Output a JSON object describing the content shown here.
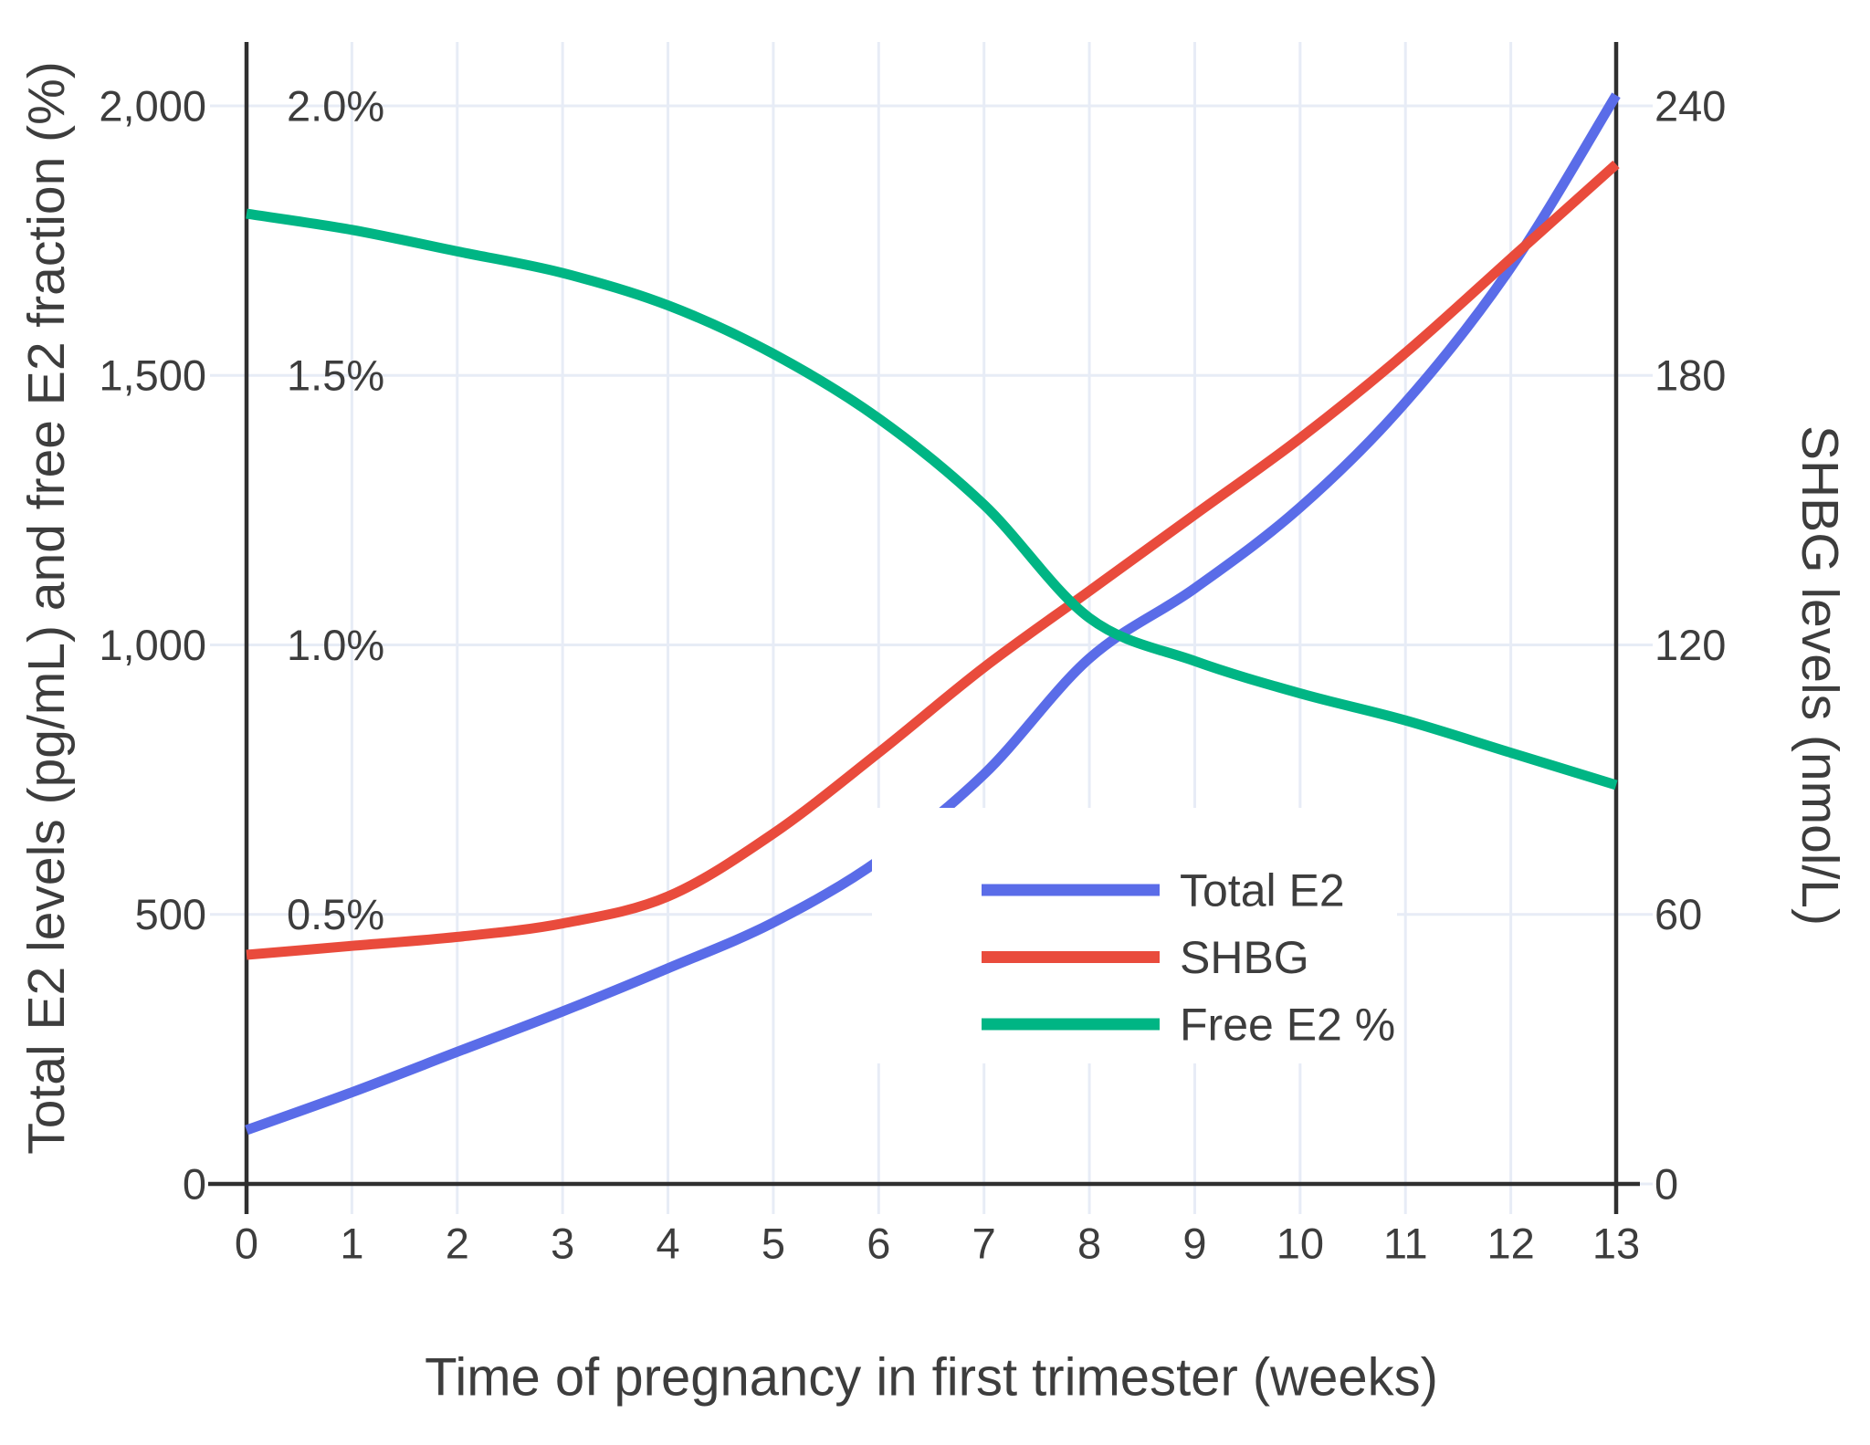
{
  "chart_data": {
    "type": "line",
    "x_label": "Time of pregnancy in first trimester (weeks)",
    "weeks": [
      0,
      1,
      2,
      3,
      4,
      5,
      6,
      7,
      8,
      9,
      10,
      11,
      12,
      13
    ],
    "x_ticks": [
      {
        "v": 0,
        "label": "0"
      },
      {
        "v": 1,
        "label": "1"
      },
      {
        "v": 2,
        "label": "2"
      },
      {
        "v": 3,
        "label": "3"
      },
      {
        "v": 4,
        "label": "4"
      },
      {
        "v": 5,
        "label": "5"
      },
      {
        "v": 6,
        "label": "6"
      },
      {
        "v": 7,
        "label": "7"
      },
      {
        "v": 8,
        "label": "8"
      },
      {
        "v": 9,
        "label": "9"
      },
      {
        "v": 10,
        "label": "10"
      },
      {
        "v": 11,
        "label": "11"
      },
      {
        "v": 12,
        "label": "12"
      },
      {
        "v": 13,
        "label": "13"
      }
    ],
    "y_left": {
      "label": "Total E2 levels (pg/mL) and free E2 fraction (%)",
      "range": [
        0,
        2135
      ],
      "ticks": [
        {
          "v": 0,
          "label": "0"
        },
        {
          "v": 500,
          "label": "500"
        },
        {
          "v": 1000,
          "label": "1,000"
        },
        {
          "v": 1500,
          "label": "1,500"
        },
        {
          "v": 2000,
          "label": "2,000"
        }
      ],
      "pct_ticks": [
        {
          "v": 500,
          "label": "0.5%"
        },
        {
          "v": 1000,
          "label": "1.0%"
        },
        {
          "v": 1500,
          "label": "1.5%"
        },
        {
          "v": 2000,
          "label": "2.0%"
        }
      ]
    },
    "y_right": {
      "label": "SHBG levels (nmol/L)",
      "range": [
        0,
        256
      ],
      "ticks": [
        {
          "v": 0,
          "label": "0"
        },
        {
          "v": 60,
          "label": "60"
        },
        {
          "v": 120,
          "label": "120"
        },
        {
          "v": 180,
          "label": "180"
        },
        {
          "v": 240,
          "label": "240"
        }
      ]
    },
    "series": [
      {
        "name": "Total E2",
        "axis": "left",
        "unit": "pg/mL",
        "color": "#5a6ce8",
        "values": [
          100,
          170,
          245,
          320,
          400,
          485,
          600,
          760,
          975,
          1105,
          1255,
          1450,
          1700,
          2020
        ]
      },
      {
        "name": "SHBG",
        "axis": "right",
        "unit": "nmol/L",
        "color": "#e94b3c",
        "values": [
          51,
          53,
          55,
          58,
          64,
          78,
          96,
          115,
          132,
          149,
          166,
          185,
          206,
          227
        ]
      },
      {
        "name": "Free E2 %",
        "axis": "left_percent",
        "unit": "%",
        "color": "#00b584",
        "values": [
          1.8,
          1.77,
          1.73,
          1.69,
          1.63,
          1.54,
          1.42,
          1.26,
          1.05,
          0.97,
          0.91,
          0.86,
          0.8,
          0.74
        ]
      }
    ],
    "legend": {
      "position": "inside bottom-right",
      "entries": [
        "Total E2",
        "SHBG",
        "Free E2 %"
      ]
    },
    "grid": true,
    "colors": {
      "grid": "#e7ecf6",
      "axis": "#2f2f2f",
      "text": "#3d3d3d",
      "background": "#ffffff"
    }
  }
}
